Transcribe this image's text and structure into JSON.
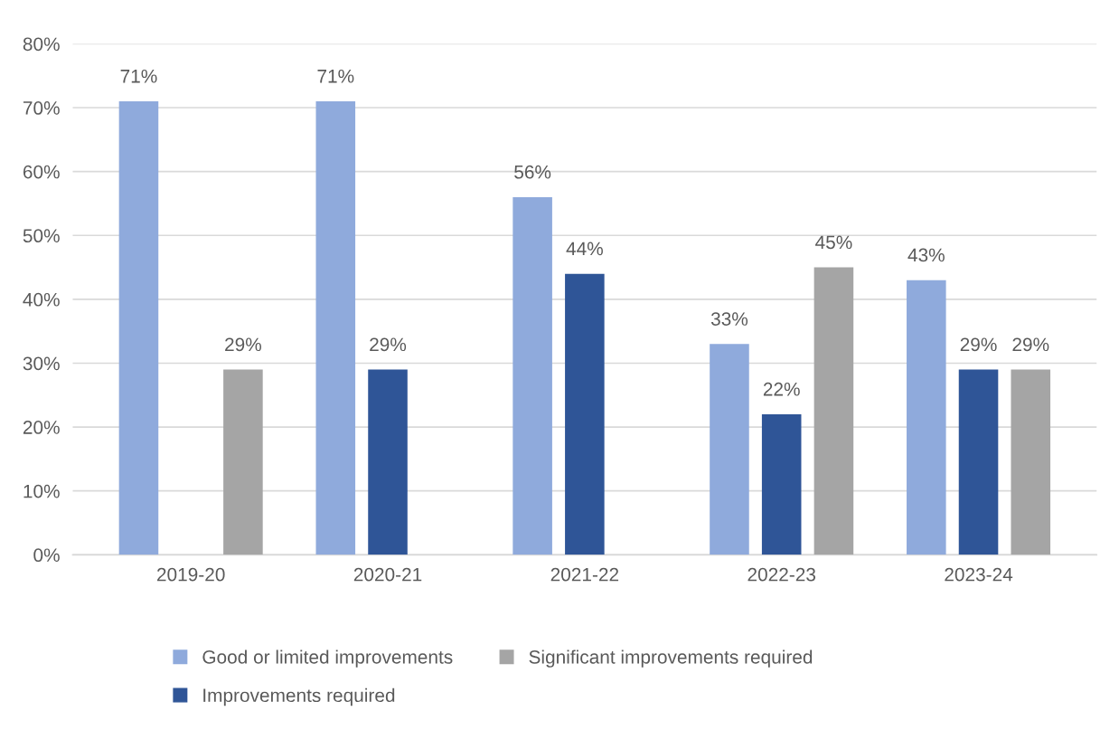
{
  "chart_data": {
    "type": "bar",
    "categories": [
      "2019-20",
      "2020-21",
      "2021-22",
      "2022-23",
      "2023-24"
    ],
    "series": [
      {
        "name": "Good or limited improvements",
        "color": "#8faadc",
        "values": [
          71,
          71,
          56,
          33,
          43
        ],
        "value_labels": [
          "71%",
          "71%",
          "56%",
          "33%",
          "43%"
        ]
      },
      {
        "name": "Improvements required",
        "color": "#2f5597",
        "values": [
          null,
          29,
          44,
          22,
          29
        ],
        "value_labels": [
          null,
          "29%",
          "44%",
          "22%",
          "29%"
        ]
      },
      {
        "name": "Significant improvements required",
        "color": "#a5a5a5",
        "values": [
          29,
          null,
          null,
          45,
          29
        ],
        "value_labels": [
          "29%",
          null,
          null,
          "45%",
          "29%"
        ]
      }
    ],
    "ylim": [
      0,
      80
    ],
    "yticks": [
      {
        "value": 0,
        "label": "0%"
      },
      {
        "value": 10,
        "label": "10%"
      },
      {
        "value": 20,
        "label": "20%"
      },
      {
        "value": 30,
        "label": "30%"
      },
      {
        "value": 40,
        "label": "40%"
      },
      {
        "value": 50,
        "label": "50%"
      },
      {
        "value": 60,
        "label": "60%"
      },
      {
        "value": 70,
        "label": "70%"
      },
      {
        "value": 80,
        "label": "80%"
      }
    ],
    "grid": "y",
    "legend": "bottom"
  }
}
